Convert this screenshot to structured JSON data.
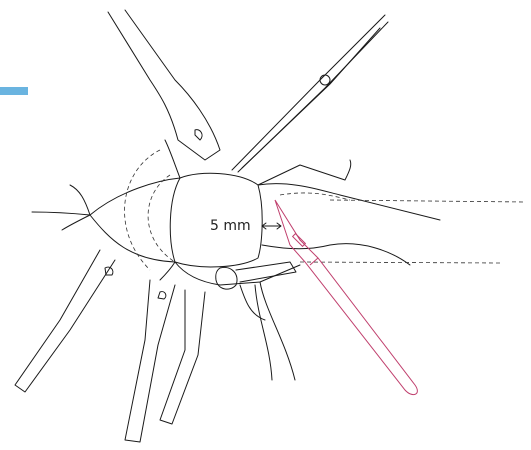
{
  "labels": {
    "measurement": "5 mm"
  }
}
